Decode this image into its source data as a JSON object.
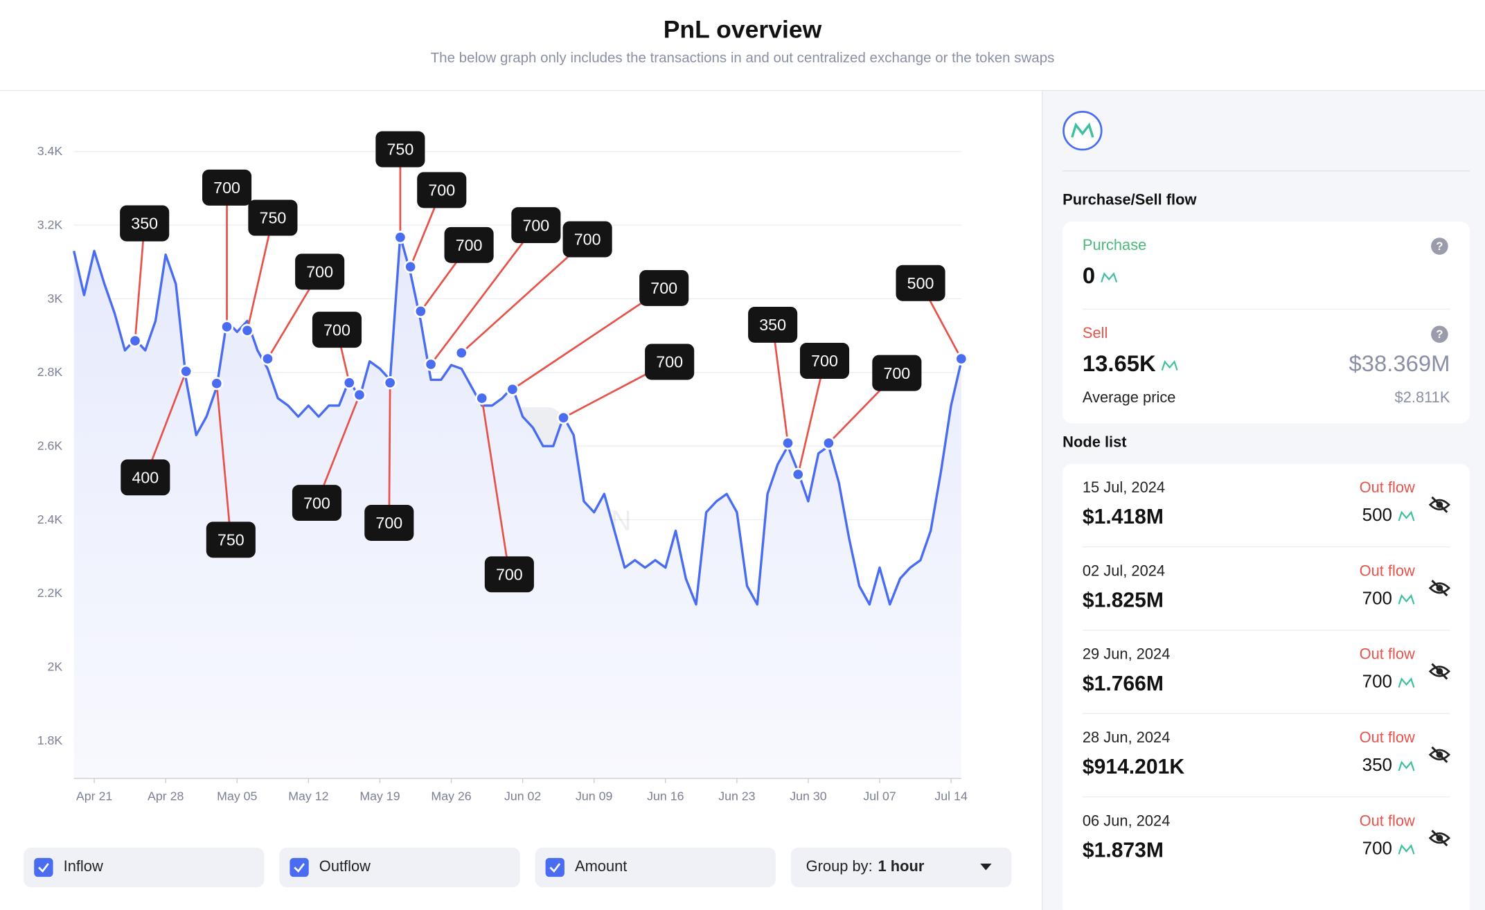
{
  "header": {
    "title": "PnL overview",
    "subtitle": "The below graph only includes the transactions in and out centralized exchange or the token swaps"
  },
  "chart_data": {
    "type": "line",
    "watermark": "SPOTONCHAIN",
    "xlim": [
      "Apr 19",
      "Jul 15"
    ],
    "xticks": [
      "Apr 21",
      "Apr 28",
      "May 05",
      "May 12",
      "May 19",
      "May 26",
      "Jun 02",
      "Jun 09",
      "Jun 16",
      "Jun 23",
      "Jun 30",
      "Jul 07",
      "Jul 14"
    ],
    "ylim": [
      1700,
      3400
    ],
    "yticks": [
      {
        "value": 1800,
        "label": "1.8K"
      },
      {
        "value": 2000,
        "label": "2K"
      },
      {
        "value": 2200,
        "label": "2.2K"
      },
      {
        "value": 2400,
        "label": "2.4K"
      },
      {
        "value": 2600,
        "label": "2.6K"
      },
      {
        "value": 2800,
        "label": "2.8K"
      },
      {
        "value": 3000,
        "label": "3K"
      },
      {
        "value": 3200,
        "label": "3.2K"
      },
      {
        "value": {
          "value": 3400
        },
        "label": "3.4K"
      }
    ],
    "grid": true,
    "series": [
      {
        "color": "#4a6cf0",
        "values": [
          3130,
          3010,
          3130,
          3040,
          2960,
          2860,
          2890,
          2860,
          2940,
          3120,
          3040,
          2780,
          2630,
          2680,
          2760,
          2940,
          2910,
          2940,
          2860,
          2810,
          2730,
          2710,
          2680,
          2710,
          2680,
          2710,
          2710,
          2780,
          2730,
          2830,
          2810,
          2780,
          3170,
          3070,
          2940,
          2780,
          2780,
          2820,
          2810,
          2760,
          2710,
          2710,
          2730,
          2760,
          2680,
          2650,
          2600,
          2600,
          2680,
          2630,
          2450,
          2420,
          2470,
          2370,
          2270,
          2290,
          2270,
          2290,
          2270,
          2370,
          2240,
          2170,
          2420,
          2450,
          2470,
          2420,
          2220,
          2170,
          2470,
          2550,
          2600,
          2530,
          2450,
          2580,
          2600,
          2500,
          2350,
          2220,
          2170,
          2270,
          2170,
          2240,
          2270,
          2290,
          2370,
          2530,
          2710,
          2830
        ]
      }
    ],
    "markers": [
      {
        "x": "Apr 25",
        "value": 2886,
        "label": "350"
      },
      {
        "x": "Apr 30",
        "value": 2803,
        "label": "400"
      },
      {
        "x": "May 03",
        "value": 2770,
        "label": "750"
      },
      {
        "x": "May 04",
        "value": 2924,
        "label": "700"
      },
      {
        "x": "May 06",
        "value": 2914,
        "label": "750"
      },
      {
        "x": "May 08",
        "value": 2837,
        "label": "700"
      },
      {
        "x": "May 16",
        "value": 2772,
        "label": "700"
      },
      {
        "x": "May 17",
        "value": 2739,
        "label": "700"
      },
      {
        "x": "May 20",
        "value": 2772,
        "label": "700"
      },
      {
        "x": "May 21",
        "value": 3167,
        "label": "750"
      },
      {
        "x": "May 22",
        "value": 3087,
        "label": "700"
      },
      {
        "x": "May 23",
        "value": 2966,
        "label": "700"
      },
      {
        "x": "May 24",
        "value": 2822,
        "label": "700"
      },
      {
        "x": "May 27",
        "value": 2853,
        "label": "700"
      },
      {
        "x": "May 29",
        "value": 2730,
        "label": "700"
      },
      {
        "x": "Jun 01",
        "value": 2754,
        "label": "700"
      },
      {
        "x": "Jun 06",
        "value": 2677,
        "label": "700"
      },
      {
        "x": "Jun 28",
        "value": 2608,
        "label": "350"
      },
      {
        "x": "Jun 29",
        "value": 2523,
        "label": "700"
      },
      {
        "x": "Jul 02",
        "value": 2608,
        "label": "700"
      },
      {
        "x": "Jul 15",
        "value": 2837,
        "label": "500"
      }
    ]
  },
  "controls": {
    "toggles": [
      "Inflow",
      "Outflow",
      "Amount"
    ],
    "group_label": "Group by:",
    "group_value": "1 hour"
  },
  "sidebar": {
    "flow_title": "Purchase/Sell flow",
    "purchase_label": "Purchase",
    "purchase_value": "0",
    "sell_label": "Sell",
    "sell_value": "13.65K",
    "sell_usd": "$38.369M",
    "avg_label": "Average price",
    "avg_value": "$2.811K",
    "node_title": "Node list",
    "nodes": [
      {
        "date": "15 Jul, 2024",
        "usd": "$1.418M",
        "flow": "Out flow",
        "amount": "500"
      },
      {
        "date": "02 Jul, 2024",
        "usd": "$1.825M",
        "flow": "Out flow",
        "amount": "700"
      },
      {
        "date": "29 Jun, 2024",
        "usd": "$1.766M",
        "flow": "Out flow",
        "amount": "700"
      },
      {
        "date": "28 Jun, 2024",
        "usd": "$914.201K",
        "flow": "Out flow",
        "amount": "350"
      },
      {
        "date": "06 Jun, 2024",
        "usd": "$1.873M",
        "flow": "Out flow",
        "amount": "700"
      }
    ]
  }
}
